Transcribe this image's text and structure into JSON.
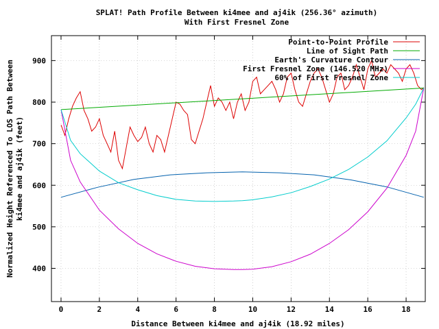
{
  "chart_data": {
    "type": "line",
    "title_line1": "SPLAT! Path Profile Between ki4mee and aj4ik (256.36° azimuth)",
    "title_line2": "With First Fresnel Zone",
    "xlabel": "Distance Between ki4mee and aj4ik (18.92 miles)",
    "ylabel_line1": "Normalized Height Referenced To LOS Path Between",
    "ylabel_line2": "ki4mee and aj4ik (feet)",
    "xlim": [
      -0.5,
      19
    ],
    "ylim": [
      320,
      960
    ],
    "xticks": [
      0,
      2,
      4,
      6,
      8,
      10,
      12,
      14,
      16,
      18
    ],
    "yticks": [
      400,
      500,
      600,
      700,
      800,
      900
    ],
    "grid": true,
    "legend_position": "top-right",
    "series": [
      {
        "name": "Point-to-Point Profile",
        "color": "#dd0000",
        "x": [
          0.0,
          0.2,
          0.4,
          0.6,
          0.8,
          1.0,
          1.2,
          1.4,
          1.6,
          1.8,
          2.0,
          2.2,
          2.4,
          2.6,
          2.8,
          3.0,
          3.2,
          3.4,
          3.6,
          3.8,
          4.0,
          4.2,
          4.4,
          4.6,
          4.8,
          5.0,
          5.2,
          5.4,
          5.6,
          5.8,
          6.0,
          6.2,
          6.4,
          6.6,
          6.8,
          7.0,
          7.2,
          7.4,
          7.6,
          7.8,
          8.0,
          8.2,
          8.4,
          8.6,
          8.8,
          9.0,
          9.2,
          9.4,
          9.6,
          9.8,
          10.0,
          10.2,
          10.4,
          10.6,
          10.8,
          11.0,
          11.2,
          11.4,
          11.6,
          11.8,
          12.0,
          12.2,
          12.4,
          12.6,
          12.8,
          13.0,
          13.2,
          13.4,
          13.6,
          13.8,
          14.0,
          14.2,
          14.4,
          14.6,
          14.8,
          15.0,
          15.2,
          15.4,
          15.6,
          15.8,
          16.0,
          16.2,
          16.4,
          16.6,
          16.8,
          17.0,
          17.2,
          17.4,
          17.6,
          17.8,
          18.0,
          18.2,
          18.4,
          18.6,
          18.8,
          18.92
        ],
        "values": [
          745,
          720,
          760,
          790,
          810,
          825,
          780,
          760,
          730,
          740,
          760,
          720,
          700,
          680,
          730,
          660,
          640,
          690,
          740,
          720,
          705,
          715,
          740,
          700,
          680,
          720,
          710,
          680,
          720,
          760,
          800,
          795,
          780,
          770,
          710,
          700,
          730,
          760,
          800,
          840,
          790,
          810,
          800,
          780,
          800,
          760,
          800,
          820,
          780,
          800,
          850,
          860,
          820,
          830,
          840,
          850,
          830,
          800,
          820,
          860,
          870,
          830,
          800,
          790,
          820,
          850,
          870,
          880,
          860,
          830,
          800,
          820,
          860,
          870,
          830,
          840,
          860,
          890,
          860,
          830,
          880,
          900,
          860,
          870,
          880,
          870,
          890,
          880,
          870,
          850,
          880,
          890,
          870,
          840,
          830,
          835
        ]
      },
      {
        "name": "Line of Sight Path",
        "color": "#00aa00",
        "x": [
          0.0,
          18.92
        ],
        "values": [
          782,
          834
        ]
      },
      {
        "name": "Earth's Curvature Contour",
        "color": "#0060ad",
        "x": [
          0.0,
          1.9,
          3.8,
          5.7,
          7.6,
          9.46,
          11.4,
          13.2,
          15.1,
          17.0,
          18.92
        ],
        "values": [
          571,
          595,
          614,
          625,
          630,
          632,
          630,
          625,
          613,
          596,
          571
        ]
      },
      {
        "name": "First Fresnel Zone (146.520 MHz)",
        "color": "#cc00cc",
        "x": [
          0.0,
          0.5,
          1.0,
          2.0,
          3.0,
          4.0,
          5.0,
          6.0,
          7.0,
          8.0,
          9.0,
          9.46,
          10.0,
          11.0,
          12.0,
          13.0,
          14.0,
          15.0,
          16.0,
          17.0,
          18.0,
          18.5,
          18.92
        ],
        "values": [
          782,
          660,
          608,
          540,
          495,
          460,
          435,
          417,
          405,
          399,
          397,
          397,
          398,
          404,
          416,
          434,
          460,
          493,
          536,
          593,
          672,
          730,
          834
        ]
      },
      {
        "name": "60% of First Fresnel Zone",
        "color": "#00cccc",
        "x": [
          0.0,
          0.5,
          1.0,
          2.0,
          3.0,
          4.0,
          5.0,
          6.0,
          7.0,
          8.0,
          9.0,
          9.46,
          10.0,
          11.0,
          12.0,
          13.0,
          14.0,
          15.0,
          16.0,
          17.0,
          18.0,
          18.5,
          18.92
        ],
        "values": [
          782,
          708,
          676,
          634,
          606,
          589,
          575,
          566,
          562,
          561,
          562,
          563,
          565,
          572,
          582,
          597,
          615,
          638,
          668,
          707,
          762,
          795,
          834
        ]
      }
    ]
  }
}
